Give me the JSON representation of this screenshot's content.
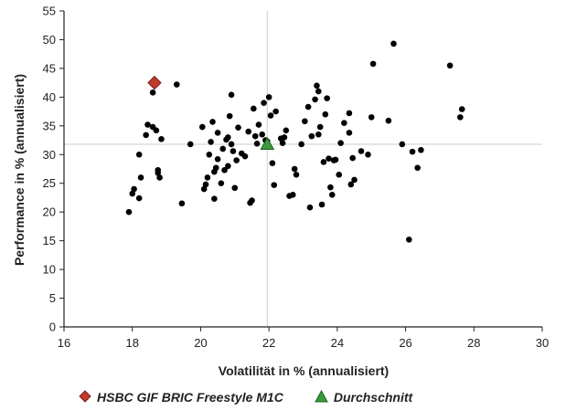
{
  "chart_data": {
    "type": "scatter",
    "xlabel": "Volatilität in % (annualisiert)",
    "ylabel": "Performance in % (annualisiert)",
    "xlim": [
      16,
      30
    ],
    "ylim": [
      0,
      55
    ],
    "xticks": [
      "16",
      "18",
      "20",
      "22",
      "24",
      "26",
      "28",
      "30"
    ],
    "yticks": [
      "0",
      "5",
      "10",
      "15",
      "20",
      "25",
      "30",
      "35",
      "40",
      "45",
      "50",
      "55"
    ],
    "reference_lines": {
      "x": 21.95,
      "y": 31.8
    },
    "grid": false,
    "legend_position": "bottom",
    "colors": {
      "points": "#000000",
      "fund": "#c0392b",
      "average": "#3a9a3a",
      "reference": "#cccccc"
    },
    "series": [
      {
        "name": "HSBC GIF BRIC Freestyle M1C",
        "marker": "diamond",
        "points": [
          [
            18.65,
            42.5
          ]
        ]
      },
      {
        "name": "Durchschnitt",
        "marker": "triangle",
        "points": [
          [
            21.95,
            31.8
          ]
        ]
      },
      {
        "name": "",
        "marker": "circle",
        "points": [
          [
            17.9,
            20
          ],
          [
            18.0,
            23.2
          ],
          [
            18.05,
            24
          ],
          [
            18.2,
            22.4
          ],
          [
            18.2,
            30
          ],
          [
            18.25,
            26
          ],
          [
            18.4,
            33.4
          ],
          [
            18.45,
            35.2
          ],
          [
            18.6,
            34.8
          ],
          [
            18.6,
            40.8
          ],
          [
            18.65,
            42.5
          ],
          [
            18.7,
            34.2
          ],
          [
            18.75,
            27.3
          ],
          [
            18.75,
            26.8
          ],
          [
            18.8,
            26.0
          ],
          [
            18.85,
            32.7
          ],
          [
            19.3,
            42.2
          ],
          [
            19.45,
            21.5
          ],
          [
            19.7,
            31.8
          ],
          [
            20.05,
            34.8
          ],
          [
            20.1,
            24.0
          ],
          [
            20.15,
            24.8
          ],
          [
            20.2,
            26.0
          ],
          [
            20.25,
            30.0
          ],
          [
            20.3,
            32.2
          ],
          [
            20.35,
            35.7
          ],
          [
            20.4,
            22.3
          ],
          [
            20.4,
            27.0
          ],
          [
            20.45,
            27.7
          ],
          [
            20.5,
            29.2
          ],
          [
            20.5,
            33.8
          ],
          [
            20.6,
            25.0
          ],
          [
            20.65,
            31.0
          ],
          [
            20.7,
            27.3
          ],
          [
            20.75,
            32.6
          ],
          [
            20.8,
            28.0
          ],
          [
            20.8,
            33.0
          ],
          [
            20.85,
            36.7
          ],
          [
            20.9,
            40.4
          ],
          [
            20.9,
            31.8
          ],
          [
            20.95,
            30.6
          ],
          [
            21.0,
            24.2
          ],
          [
            21.05,
            29.0
          ],
          [
            21.1,
            34.7
          ],
          [
            21.2,
            30.2
          ],
          [
            21.3,
            29.7
          ],
          [
            21.4,
            34.0
          ],
          [
            21.45,
            21.6
          ],
          [
            21.5,
            22.0
          ],
          [
            21.55,
            38.0
          ],
          [
            21.6,
            33.2
          ],
          [
            21.65,
            31.9
          ],
          [
            21.7,
            35.2
          ],
          [
            21.8,
            33.5
          ],
          [
            21.85,
            39.0
          ],
          [
            21.9,
            32.5
          ],
          [
            21.95,
            32.3
          ],
          [
            22.0,
            40.0
          ],
          [
            22.05,
            36.8
          ],
          [
            22.1,
            28.5
          ],
          [
            22.15,
            24.7
          ],
          [
            22.2,
            37.5
          ],
          [
            22.35,
            32.8
          ],
          [
            22.4,
            32.0
          ],
          [
            22.45,
            33.0
          ],
          [
            22.5,
            34.2
          ],
          [
            22.6,
            22.8
          ],
          [
            22.7,
            23.0
          ],
          [
            22.75,
            27.5
          ],
          [
            22.8,
            26.5
          ],
          [
            22.95,
            31.8
          ],
          [
            23.05,
            35.8
          ],
          [
            23.15,
            38.3
          ],
          [
            23.2,
            20.8
          ],
          [
            23.25,
            33.2
          ],
          [
            23.35,
            39.6
          ],
          [
            23.4,
            42.0
          ],
          [
            23.45,
            41.0
          ],
          [
            23.45,
            33.5
          ],
          [
            23.5,
            34.8
          ],
          [
            23.55,
            21.3
          ],
          [
            23.6,
            28.7
          ],
          [
            23.65,
            37.0
          ],
          [
            23.7,
            39.8
          ],
          [
            23.75,
            29.3
          ],
          [
            23.8,
            24.3
          ],
          [
            23.85,
            23.0
          ],
          [
            23.9,
            29.0
          ],
          [
            23.95,
            29.1
          ],
          [
            24.05,
            26.5
          ],
          [
            24.1,
            32.0
          ],
          [
            24.2,
            35.5
          ],
          [
            24.35,
            33.8
          ],
          [
            24.35,
            37.2
          ],
          [
            24.4,
            24.8
          ],
          [
            24.45,
            29.4
          ],
          [
            24.5,
            25.6
          ],
          [
            24.7,
            30.6
          ],
          [
            24.9,
            30.0
          ],
          [
            25.0,
            36.5
          ],
          [
            25.05,
            45.8
          ],
          [
            25.5,
            35.9
          ],
          [
            25.65,
            49.3
          ],
          [
            25.9,
            31.8
          ],
          [
            26.1,
            15.2
          ],
          [
            26.2,
            30.5
          ],
          [
            26.35,
            27.7
          ],
          [
            26.45,
            30.8
          ],
          [
            27.3,
            45.5
          ],
          [
            27.6,
            36.5
          ],
          [
            27.65,
            37.9
          ]
        ]
      }
    ]
  },
  "legend": {
    "fund_label": "HSBC GIF BRIC Freestyle M1C",
    "average_label": "Durchschnitt"
  }
}
